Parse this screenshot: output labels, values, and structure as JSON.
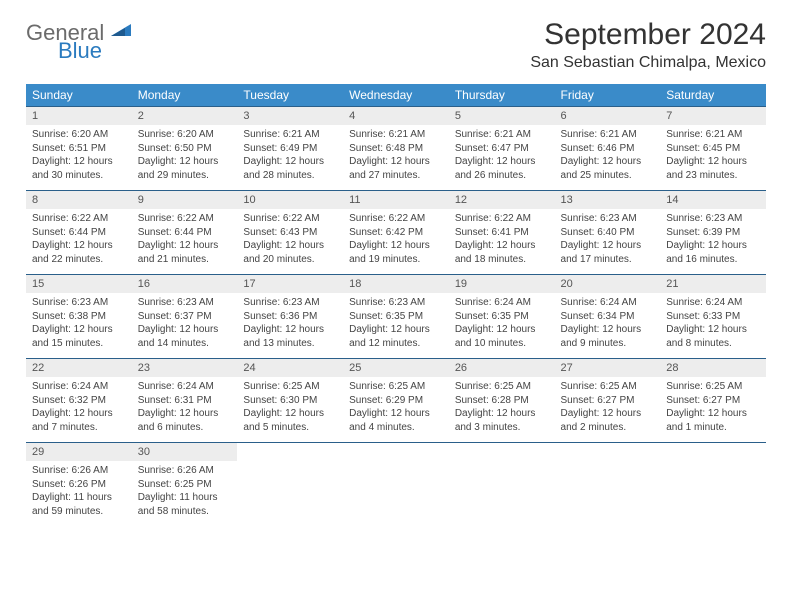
{
  "logo": {
    "word1": "General",
    "word2": "Blue"
  },
  "title": "September 2024",
  "location": "San Sebastian Chimalpa, Mexico",
  "colors": {
    "header_bg": "#3a8bc9",
    "header_text": "#ffffff",
    "daynum_bg": "#ededed",
    "border": "#2a5f8a",
    "logo_gray": "#6b6b6b",
    "logo_blue": "#2b7bbf"
  },
  "day_labels": [
    "Sunday",
    "Monday",
    "Tuesday",
    "Wednesday",
    "Thursday",
    "Friday",
    "Saturday"
  ],
  "weeks": [
    [
      {
        "n": "1",
        "sr": "6:20 AM",
        "ss": "6:51 PM",
        "dl": "12 hours and 30 minutes."
      },
      {
        "n": "2",
        "sr": "6:20 AM",
        "ss": "6:50 PM",
        "dl": "12 hours and 29 minutes."
      },
      {
        "n": "3",
        "sr": "6:21 AM",
        "ss": "6:49 PM",
        "dl": "12 hours and 28 minutes."
      },
      {
        "n": "4",
        "sr": "6:21 AM",
        "ss": "6:48 PM",
        "dl": "12 hours and 27 minutes."
      },
      {
        "n": "5",
        "sr": "6:21 AM",
        "ss": "6:47 PM",
        "dl": "12 hours and 26 minutes."
      },
      {
        "n": "6",
        "sr": "6:21 AM",
        "ss": "6:46 PM",
        "dl": "12 hours and 25 minutes."
      },
      {
        "n": "7",
        "sr": "6:21 AM",
        "ss": "6:45 PM",
        "dl": "12 hours and 23 minutes."
      }
    ],
    [
      {
        "n": "8",
        "sr": "6:22 AM",
        "ss": "6:44 PM",
        "dl": "12 hours and 22 minutes."
      },
      {
        "n": "9",
        "sr": "6:22 AM",
        "ss": "6:44 PM",
        "dl": "12 hours and 21 minutes."
      },
      {
        "n": "10",
        "sr": "6:22 AM",
        "ss": "6:43 PM",
        "dl": "12 hours and 20 minutes."
      },
      {
        "n": "11",
        "sr": "6:22 AM",
        "ss": "6:42 PM",
        "dl": "12 hours and 19 minutes."
      },
      {
        "n": "12",
        "sr": "6:22 AM",
        "ss": "6:41 PM",
        "dl": "12 hours and 18 minutes."
      },
      {
        "n": "13",
        "sr": "6:23 AM",
        "ss": "6:40 PM",
        "dl": "12 hours and 17 minutes."
      },
      {
        "n": "14",
        "sr": "6:23 AM",
        "ss": "6:39 PM",
        "dl": "12 hours and 16 minutes."
      }
    ],
    [
      {
        "n": "15",
        "sr": "6:23 AM",
        "ss": "6:38 PM",
        "dl": "12 hours and 15 minutes."
      },
      {
        "n": "16",
        "sr": "6:23 AM",
        "ss": "6:37 PM",
        "dl": "12 hours and 14 minutes."
      },
      {
        "n": "17",
        "sr": "6:23 AM",
        "ss": "6:36 PM",
        "dl": "12 hours and 13 minutes."
      },
      {
        "n": "18",
        "sr": "6:23 AM",
        "ss": "6:35 PM",
        "dl": "12 hours and 12 minutes."
      },
      {
        "n": "19",
        "sr": "6:24 AM",
        "ss": "6:35 PM",
        "dl": "12 hours and 10 minutes."
      },
      {
        "n": "20",
        "sr": "6:24 AM",
        "ss": "6:34 PM",
        "dl": "12 hours and 9 minutes."
      },
      {
        "n": "21",
        "sr": "6:24 AM",
        "ss": "6:33 PM",
        "dl": "12 hours and 8 minutes."
      }
    ],
    [
      {
        "n": "22",
        "sr": "6:24 AM",
        "ss": "6:32 PM",
        "dl": "12 hours and 7 minutes."
      },
      {
        "n": "23",
        "sr": "6:24 AM",
        "ss": "6:31 PM",
        "dl": "12 hours and 6 minutes."
      },
      {
        "n": "24",
        "sr": "6:25 AM",
        "ss": "6:30 PM",
        "dl": "12 hours and 5 minutes."
      },
      {
        "n": "25",
        "sr": "6:25 AM",
        "ss": "6:29 PM",
        "dl": "12 hours and 4 minutes."
      },
      {
        "n": "26",
        "sr": "6:25 AM",
        "ss": "6:28 PM",
        "dl": "12 hours and 3 minutes."
      },
      {
        "n": "27",
        "sr": "6:25 AM",
        "ss": "6:27 PM",
        "dl": "12 hours and 2 minutes."
      },
      {
        "n": "28",
        "sr": "6:25 AM",
        "ss": "6:27 PM",
        "dl": "12 hours and 1 minute."
      }
    ],
    [
      {
        "n": "29",
        "sr": "6:26 AM",
        "ss": "6:26 PM",
        "dl": "11 hours and 59 minutes."
      },
      {
        "n": "30",
        "sr": "6:26 AM",
        "ss": "6:25 PM",
        "dl": "11 hours and 58 minutes."
      },
      null,
      null,
      null,
      null,
      null
    ]
  ],
  "labels": {
    "sunrise": "Sunrise:",
    "sunset": "Sunset:",
    "daylight": "Daylight:"
  }
}
